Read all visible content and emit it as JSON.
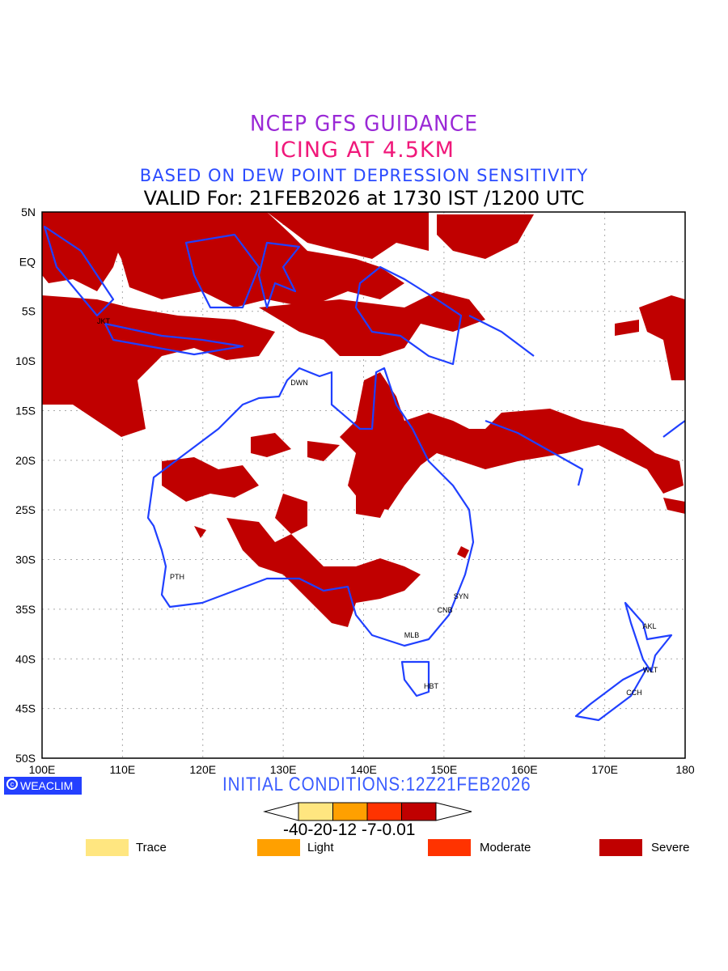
{
  "header": {
    "line1": "NCEP GFS GUIDANCE",
    "line2": "ICING AT 4.5KM",
    "line3": "BASED ON DEW POINT DEPRESSION SENSITIVITY",
    "line4": "VALID For: 21FEB2026 at 1730 IST /1200 UTC"
  },
  "map": {
    "lat_labels": [
      "5N",
      "EQ",
      "5S",
      "10S",
      "15S",
      "20S",
      "25S",
      "30S",
      "35S",
      "40S",
      "45S",
      "50S"
    ],
    "lon_labels": [
      "100E",
      "110E",
      "120E",
      "130E",
      "140E",
      "150E",
      "160E",
      "170E",
      "180"
    ],
    "cities": [
      "JKT",
      "DWN",
      "PTH",
      "SYN",
      "CNB",
      "MLB",
      "HBT",
      "AKL",
      "WLT",
      "CCH"
    ],
    "colors": {
      "coast": "#2040ff",
      "severe": "#c00000"
    }
  },
  "footer": {
    "brand": "WEACLIM",
    "brand_icon": "copyright-icon",
    "initial_conditions": "INITIAL CONDITIONS:12Z21FEB2026",
    "colorbar_labels": "-40-20-12 -7-0.01",
    "colorbar_colors": [
      "#ffe680",
      "#ffa000",
      "#ff3300",
      "#c00000"
    ],
    "legend": [
      {
        "label": "Trace",
        "color": "#ffe680"
      },
      {
        "label": "Light",
        "color": "#ffa000"
      },
      {
        "label": "Moderate",
        "color": "#ff3300"
      },
      {
        "label": "Severe",
        "color": "#c00000"
      }
    ]
  }
}
